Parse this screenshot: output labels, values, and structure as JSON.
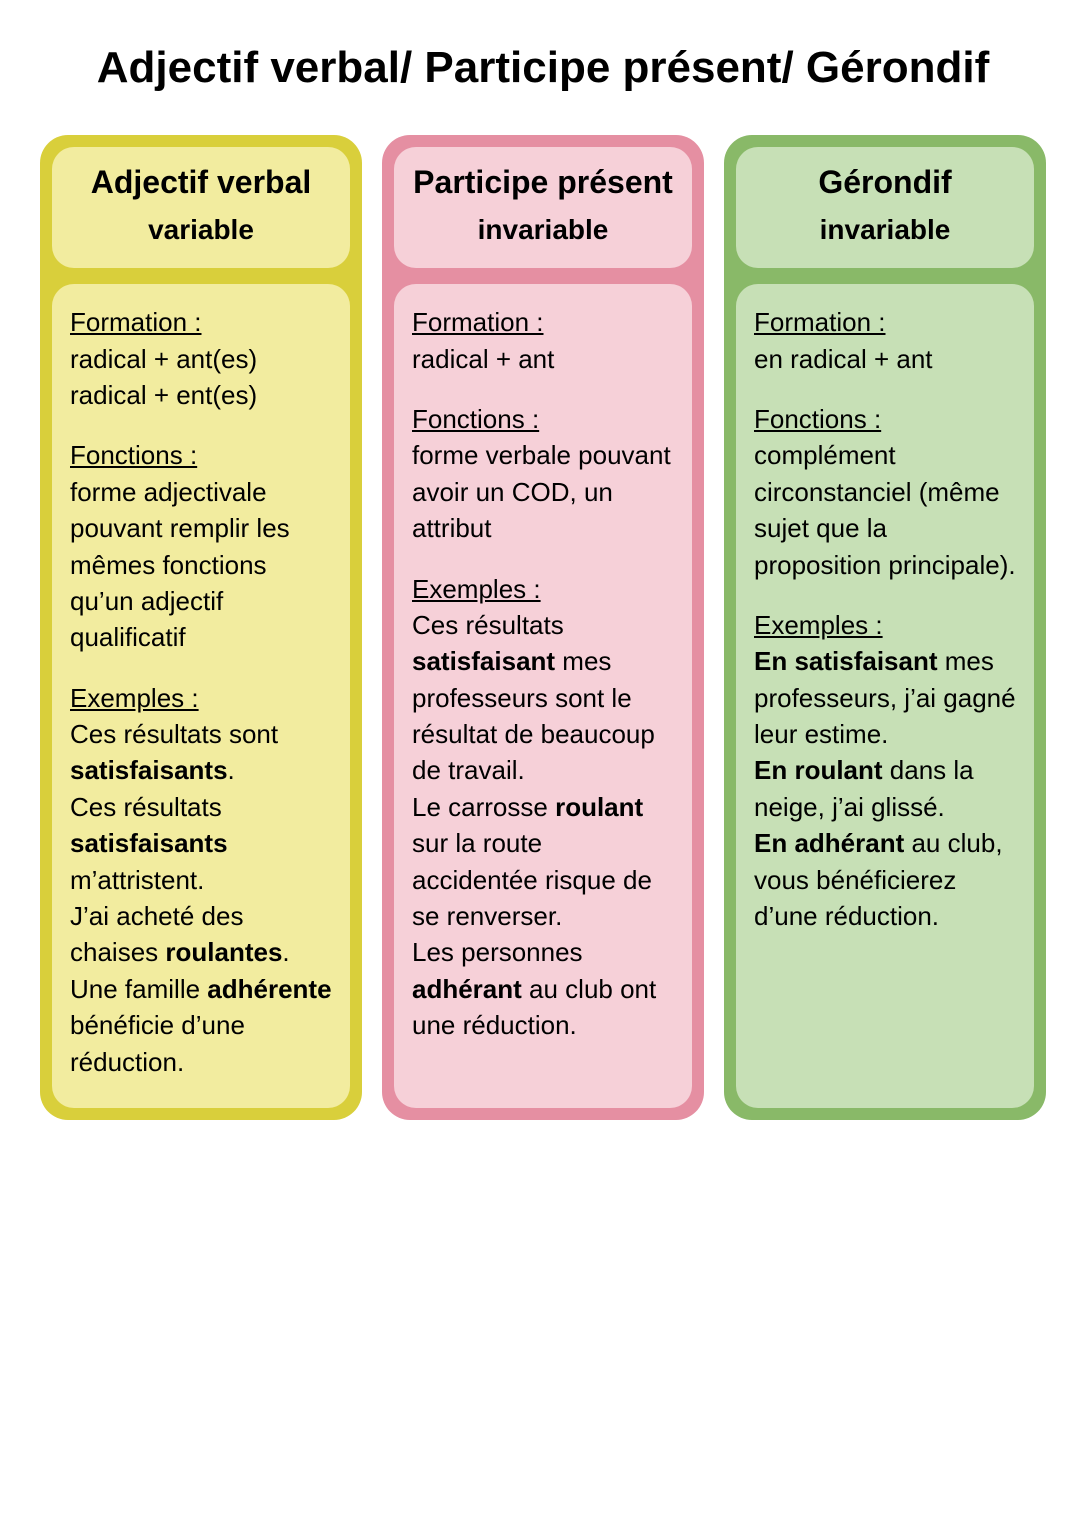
{
  "page": {
    "title": "Adjectif verbal/ Participe présent/ Gérondif"
  },
  "colors": {
    "col_yellow_border": "#d9cf3b",
    "col_yellow_fill": "#f2ec9f",
    "col_pink_border": "#e58fa2",
    "col_pink_fill": "#f6d0d8",
    "col_green_border": "#89b968",
    "col_green_fill": "#c7e0b6",
    "text": "#000000",
    "background": "#ffffff"
  },
  "typography": {
    "title_fontsize": 44,
    "head_title_fontsize": 32,
    "head_sub_fontsize": 28,
    "body_fontsize": 26,
    "font_family": "Arial"
  },
  "columns": [
    {
      "key": "adjectif_verbal",
      "head_title": "Adjectif verbal",
      "head_sub": "variable",
      "formation_label": "Formation :",
      "formation_lines": [
        "radical + ant(es)",
        "radical + ent(es)"
      ],
      "fonctions_label": "Fonctions :",
      "fonctions_text": "forme adjectivale pouvant remplir les mêmes fonctions qu’un adjectif qualificatif",
      "exemples_label": "Exemples :",
      "exemples": [
        {
          "pre": "Ces résultats sont ",
          "bold": "satisfaisants",
          "post": "."
        },
        {
          "pre": "Ces résultats ",
          "bold": "satisfaisants",
          "post": " m’attristent."
        },
        {
          "pre": "J’ai acheté des chaises ",
          "bold": "roulantes",
          "post": "."
        },
        {
          "pre": "Une famille ",
          "bold": "adhérente",
          "post": " bénéficie d’une réduction."
        }
      ]
    },
    {
      "key": "participe_present",
      "head_title": "Participe présent",
      "head_sub": "invariable",
      "formation_label": "Formation :",
      "formation_lines": [
        "radical + ant"
      ],
      "fonctions_label": "Fonctions :",
      "fonctions_text": "forme verbale pouvant avoir un COD, un attribut",
      "exemples_label": "Exemples :",
      "exemples": [
        {
          "pre": "Ces résultats ",
          "bold": "satisfaisant",
          "post": " mes professeurs sont le résultat de beaucoup de travail."
        },
        {
          "pre": "Le carrosse ",
          "bold": "roulant",
          "post": " sur la route accidentée risque de se renverser."
        },
        {
          "pre": "Les personnes ",
          "bold": "adhérant",
          "post": " au club ont une réduction."
        }
      ]
    },
    {
      "key": "gerondif",
      "head_title": "Gérondif",
      "head_sub": "invariable",
      "formation_label": "Formation :",
      "formation_lines": [
        "en radical + ant"
      ],
      "fonctions_label": "Fonctions :",
      "fonctions_text": "complément circonstanciel (même sujet que la proposition principale).",
      "exemples_label": "Exemples :",
      "exemples": [
        {
          "pre": "",
          "bold": "En satisfaisant",
          "post": " mes professeurs, j’ai gagné leur estime."
        },
        {
          "pre": "",
          "bold": "En roulant",
          "post": " dans la neige, j’ai glissé."
        },
        {
          "pre": "",
          "bold": "En adhérant",
          "post": " au club, vous bénéficierez d’une réduction."
        }
      ]
    }
  ]
}
